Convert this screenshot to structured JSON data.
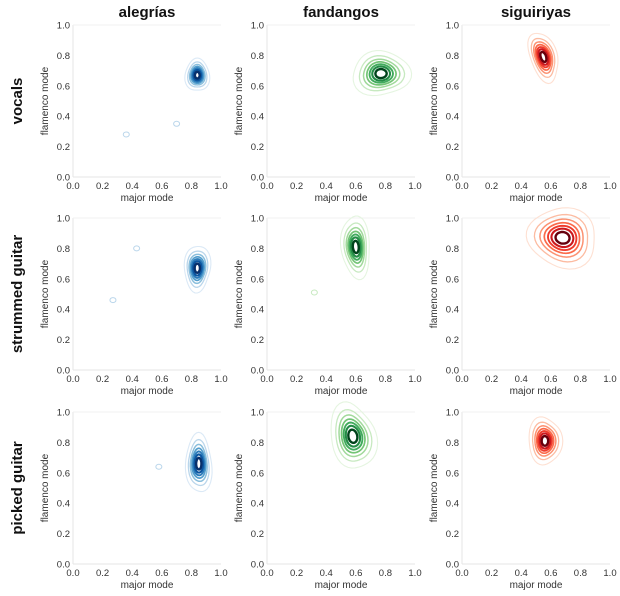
{
  "figure": {
    "column_titles": [
      "alegrías",
      "fandangos",
      "siguiriyas"
    ],
    "row_titles": [
      "vocals",
      "strummed guitar",
      "picked guitar"
    ]
  },
  "chart_data": {
    "type": "kde-contour",
    "xlabel": "major mode",
    "ylabel": "flamenco mode",
    "xlim": [
      0.0,
      1.0
    ],
    "ylim": [
      0.0,
      1.0
    ],
    "xticks": [
      "0.0",
      "0.2",
      "0.4",
      "0.6",
      "0.8",
      "1.0"
    ],
    "yticks": [
      "0.0",
      "0.2",
      "0.4",
      "0.6",
      "0.8",
      "1.0"
    ],
    "grid": false,
    "colormaps": {
      "alegrías": [
        "#dbe9f6",
        "#bad6eb",
        "#89bedc",
        "#539ecd",
        "#2b7bba",
        "#0b559f",
        "#08306b"
      ],
      "fandangos": [
        "#e5f5e0",
        "#c7e9c0",
        "#a1d99b",
        "#74c476",
        "#41ab5d",
        "#238b45",
        "#00441b"
      ],
      "siguiriyas": [
        "#fee0d2",
        "#fcbba1",
        "#fc9272",
        "#fb6a4a",
        "#ef3b2c",
        "#cb181d",
        "#67000d"
      ]
    },
    "panels": [
      {
        "row": "vocals",
        "column": "alegrías",
        "peak": [
          0.84,
          0.67
        ],
        "spread": [
          0.08,
          0.11
        ],
        "tilt": 0,
        "outliers": [
          [
            0.36,
            0.28
          ],
          [
            0.7,
            0.35
          ]
        ]
      },
      {
        "row": "vocals",
        "column": "fandangos",
        "peak": [
          0.77,
          0.68
        ],
        "spread": [
          0.19,
          0.15
        ],
        "tilt": 0,
        "outliers": []
      },
      {
        "row": "vocals",
        "column": "siguiriyas",
        "peak": [
          0.55,
          0.79
        ],
        "spread": [
          0.09,
          0.17
        ],
        "tilt": -20,
        "outliers": []
      },
      {
        "row": "strummed guitar",
        "column": "alegrías",
        "peak": [
          0.84,
          0.67
        ],
        "spread": [
          0.09,
          0.15
        ],
        "tilt": 0,
        "outliers": [
          [
            0.43,
            0.8
          ],
          [
            0.27,
            0.46
          ]
        ]
      },
      {
        "row": "strummed guitar",
        "column": "fandangos",
        "peak": [
          0.6,
          0.81
        ],
        "spread": [
          0.1,
          0.2
        ],
        "tilt": -5,
        "outliers": [
          [
            0.32,
            0.51
          ]
        ]
      },
      {
        "row": "strummed guitar",
        "column": "siguiriyas",
        "peak": [
          0.68,
          0.87
        ],
        "spread": [
          0.24,
          0.19
        ],
        "tilt": 10,
        "outliers": []
      },
      {
        "row": "picked guitar",
        "column": "alegrías",
        "peak": [
          0.85,
          0.66
        ],
        "spread": [
          0.09,
          0.19
        ],
        "tilt": 0,
        "outliers": [
          [
            0.58,
            0.64
          ]
        ]
      },
      {
        "row": "picked guitar",
        "column": "fandangos",
        "peak": [
          0.58,
          0.84
        ],
        "spread": [
          0.15,
          0.22
        ],
        "tilt": -10,
        "outliers": []
      },
      {
        "row": "picked guitar",
        "column": "siguiriyas",
        "peak": [
          0.56,
          0.81
        ],
        "spread": [
          0.11,
          0.16
        ],
        "tilt": 0,
        "outliers": []
      }
    ]
  }
}
